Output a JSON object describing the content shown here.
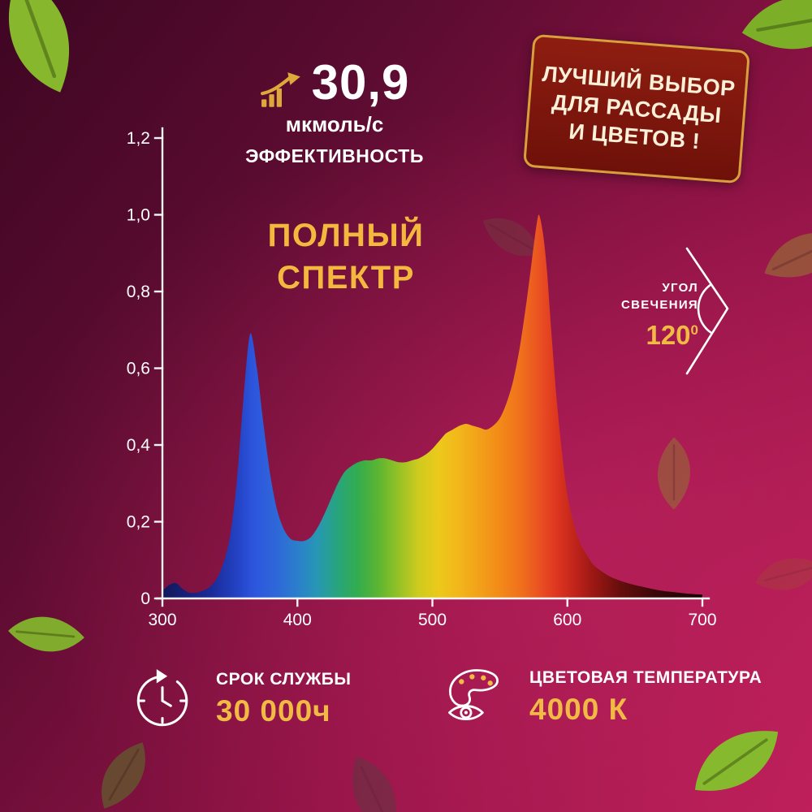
{
  "colors": {
    "accent_gold": "#f1ba45",
    "title_gold": "#f3b83d",
    "badge_bg": "#7c150d",
    "badge_border": "#d8a039",
    "axis_white": "#f5f5f5"
  },
  "efficiency": {
    "icon": "growth-arrow-icon",
    "value": "30,9",
    "unit": "мкмоль/с",
    "label": "ЭФФЕКТИВНОСТЬ"
  },
  "badge": {
    "line1": "ЛУЧШИЙ ВЫБОР",
    "line2": "ДЛЯ РАССАДЫ",
    "line3": "И ЦВЕТОВ !"
  },
  "spectrum_title": {
    "line1": "ПОЛНЫЙ",
    "line2": "СПЕКТР"
  },
  "beam_angle": {
    "icon": "beam-angle-icon",
    "label_line1": "УГОЛ",
    "label_line2": "СВЕЧЕНИЯ",
    "value": "120",
    "degree": "0"
  },
  "features": {
    "lifespan": {
      "icon": "clock-cycle-icon",
      "label": "СРОК СЛУЖБЫ",
      "value": "30 000ч"
    },
    "color_temperature": {
      "icon": "palette-eye-icon",
      "label": "ЦВЕТОВАЯ ТЕМПЕРАТУРА",
      "value": "4000 К"
    }
  },
  "chart_data": {
    "type": "area",
    "title": "ПОЛНЫЙ СПЕКТР",
    "xlabel": "",
    "ylabel": "",
    "xlim": [
      300,
      700
    ],
    "ylim": [
      0,
      1.2
    ],
    "grid": false,
    "legend": false,
    "x_ticks": [
      [
        "300",
        300
      ],
      [
        "400",
        400
      ],
      [
        "500",
        500
      ],
      [
        "600",
        600
      ],
      [
        "700",
        700
      ]
    ],
    "y_ticks": [
      [
        "0",
        0
      ],
      [
        "0,2",
        0.2
      ],
      [
        "0,4",
        0.4
      ],
      [
        "0,6",
        0.6
      ],
      [
        "0,8",
        0.8
      ],
      [
        "1,0",
        1.0
      ],
      [
        "1,2",
        1.2
      ]
    ],
    "points": [
      [
        300,
        0.02
      ],
      [
        305,
        0.035
      ],
      [
        310,
        0.04
      ],
      [
        315,
        0.025
      ],
      [
        320,
        0.015
      ],
      [
        325,
        0.015
      ],
      [
        330,
        0.02
      ],
      [
        335,
        0.03
      ],
      [
        340,
        0.05
      ],
      [
        345,
        0.09
      ],
      [
        350,
        0.16
      ],
      [
        355,
        0.3
      ],
      [
        360,
        0.52
      ],
      [
        365,
        0.69
      ],
      [
        370,
        0.6
      ],
      [
        375,
        0.45
      ],
      [
        380,
        0.32
      ],
      [
        385,
        0.23
      ],
      [
        390,
        0.18
      ],
      [
        395,
        0.155
      ],
      [
        400,
        0.15
      ],
      [
        405,
        0.15
      ],
      [
        410,
        0.16
      ],
      [
        415,
        0.185
      ],
      [
        420,
        0.22
      ],
      [
        425,
        0.26
      ],
      [
        430,
        0.3
      ],
      [
        435,
        0.33
      ],
      [
        440,
        0.345
      ],
      [
        445,
        0.355
      ],
      [
        450,
        0.36
      ],
      [
        455,
        0.36
      ],
      [
        460,
        0.365
      ],
      [
        465,
        0.365
      ],
      [
        470,
        0.36
      ],
      [
        475,
        0.355
      ],
      [
        480,
        0.355
      ],
      [
        485,
        0.36
      ],
      [
        490,
        0.365
      ],
      [
        495,
        0.375
      ],
      [
        500,
        0.39
      ],
      [
        505,
        0.41
      ],
      [
        510,
        0.43
      ],
      [
        515,
        0.44
      ],
      [
        520,
        0.45
      ],
      [
        525,
        0.455
      ],
      [
        530,
        0.45
      ],
      [
        535,
        0.445
      ],
      [
        540,
        0.44
      ],
      [
        545,
        0.45
      ],
      [
        550,
        0.47
      ],
      [
        555,
        0.51
      ],
      [
        560,
        0.57
      ],
      [
        565,
        0.66
      ],
      [
        570,
        0.78
      ],
      [
        574,
        0.89
      ],
      [
        577,
        0.97
      ],
      [
        579,
        1.0
      ],
      [
        582,
        0.95
      ],
      [
        585,
        0.85
      ],
      [
        588,
        0.7
      ],
      [
        592,
        0.52
      ],
      [
        596,
        0.38
      ],
      [
        600,
        0.27
      ],
      [
        605,
        0.19
      ],
      [
        610,
        0.14
      ],
      [
        615,
        0.11
      ],
      [
        620,
        0.085
      ],
      [
        630,
        0.06
      ],
      [
        640,
        0.045
      ],
      [
        650,
        0.035
      ],
      [
        660,
        0.027
      ],
      [
        670,
        0.02
      ],
      [
        680,
        0.016
      ],
      [
        690,
        0.012
      ],
      [
        700,
        0.01
      ]
    ],
    "gradient": [
      [
        300,
        "#12175a"
      ],
      [
        335,
        "#1a2a96"
      ],
      [
        355,
        "#2342c4"
      ],
      [
        368,
        "#2d56dd"
      ],
      [
        385,
        "#2e68d8"
      ],
      [
        400,
        "#2b7fcb"
      ],
      [
        415,
        "#2797b4"
      ],
      [
        430,
        "#28a57c"
      ],
      [
        445,
        "#33ad4c"
      ],
      [
        460,
        "#5cb531"
      ],
      [
        475,
        "#96c226"
      ],
      [
        490,
        "#cfcb1e"
      ],
      [
        505,
        "#ecc91b"
      ],
      [
        520,
        "#f2b61a"
      ],
      [
        535,
        "#f2a019"
      ],
      [
        550,
        "#f28a18"
      ],
      [
        565,
        "#f0711c"
      ],
      [
        580,
        "#ea5022"
      ],
      [
        592,
        "#de3620"
      ],
      [
        605,
        "#c1241b"
      ],
      [
        620,
        "#991713"
      ],
      [
        640,
        "#640e0d"
      ],
      [
        665,
        "#3a0808"
      ],
      [
        700,
        "#170404"
      ]
    ]
  }
}
